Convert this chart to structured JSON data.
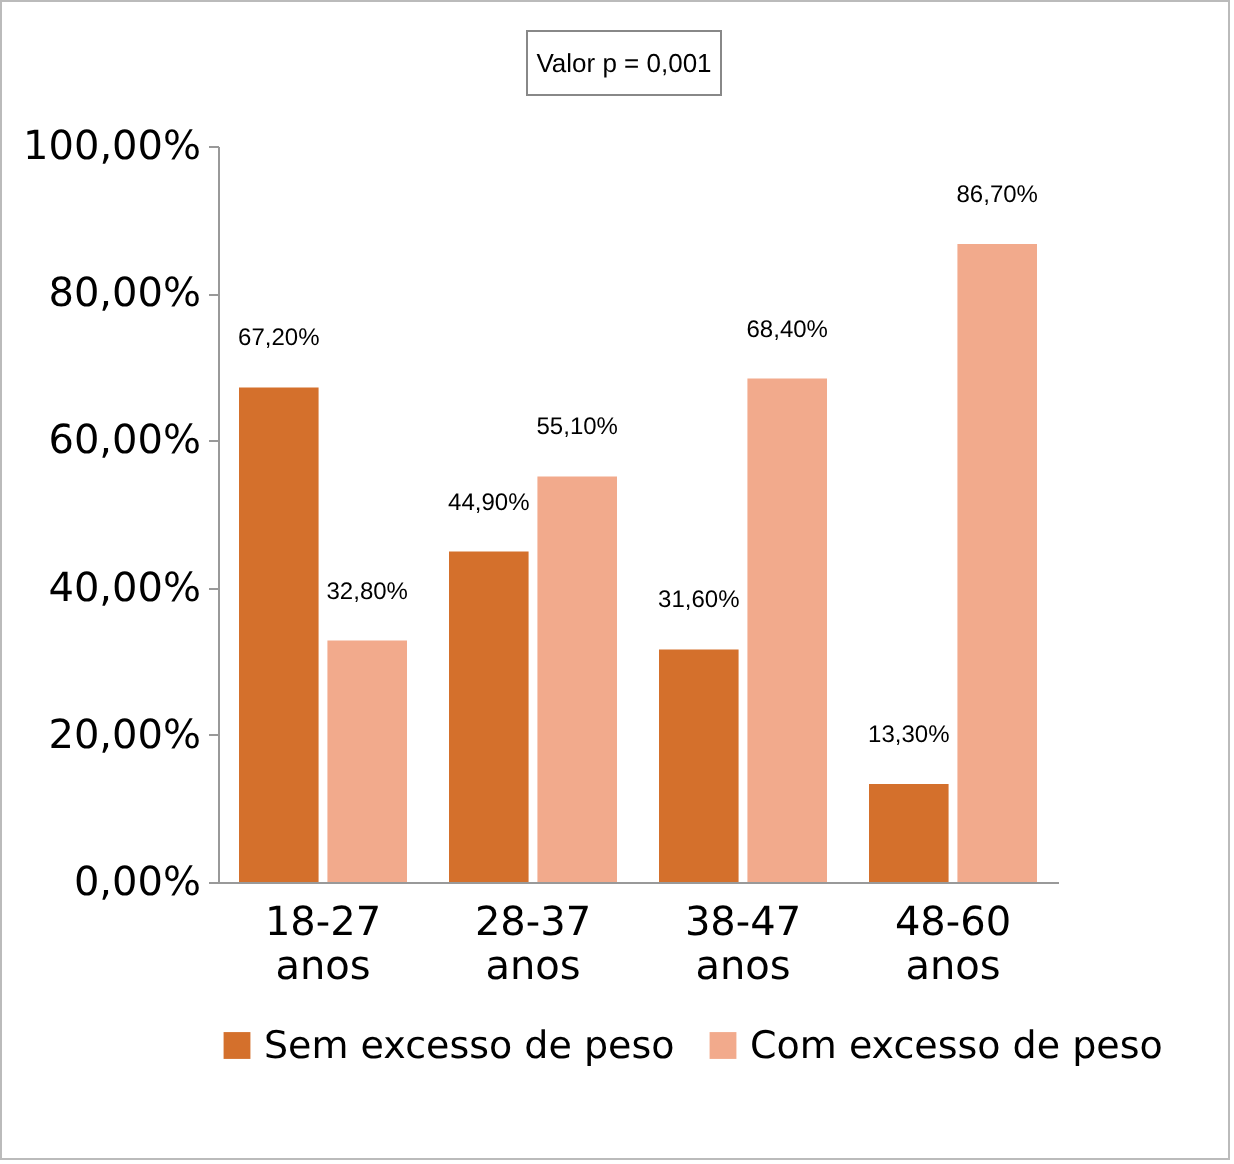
{
  "chart_data": {
    "type": "bar",
    "categories": [
      "18-27 anos",
      "28-37 anos",
      "38-47 anos",
      "48-60 anos"
    ],
    "series": [
      {
        "name": "Sem excesso de peso",
        "color": "#d4702c",
        "values": [
          67.2,
          44.9,
          31.6,
          13.3
        ],
        "value_labels": [
          "67,20%",
          "44,90%",
          "31,60%",
          "13,30%"
        ]
      },
      {
        "name": "Com excesso de peso",
        "color": "#f2aa8c",
        "values": [
          32.8,
          55.1,
          68.4,
          86.7
        ],
        "value_labels": [
          "32,80%",
          "55,10%",
          "68,40%",
          "86,70%"
        ]
      }
    ],
    "ylim": [
      0,
      100
    ],
    "yticks": [
      {
        "value": 0,
        "label": "0,00%"
      },
      {
        "value": 20,
        "label": "20,00%"
      },
      {
        "value": 40,
        "label": "40,00%"
      },
      {
        "value": 60,
        "label": "60,00%"
      },
      {
        "value": 80,
        "label": "80,00%"
      },
      {
        "value": 100,
        "label": "100,00%"
      }
    ],
    "annotations": [
      "Valor p = 0,001"
    ],
    "grid": false,
    "legend": "bottom"
  }
}
